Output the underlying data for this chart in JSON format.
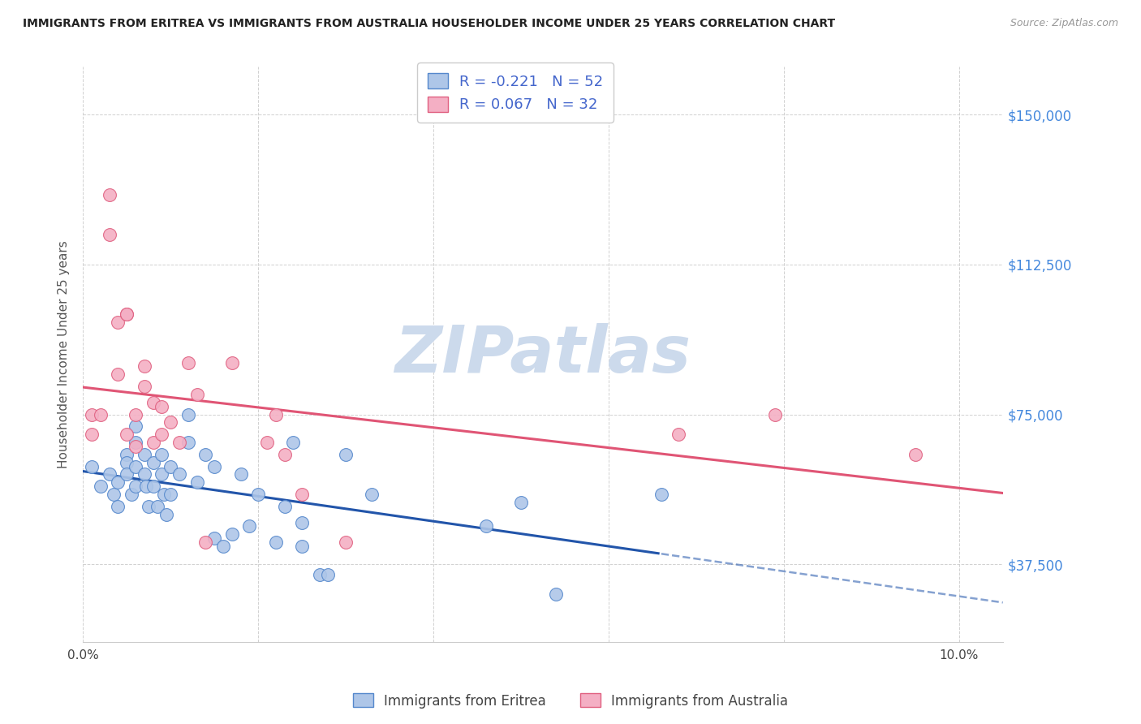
{
  "title": "IMMIGRANTS FROM ERITREA VS IMMIGRANTS FROM AUSTRALIA HOUSEHOLDER INCOME UNDER 25 YEARS CORRELATION CHART",
  "source": "Source: ZipAtlas.com",
  "ylabel": "Householder Income Under 25 years",
  "xlim": [
    0.0,
    0.105
  ],
  "ylim": [
    18000,
    162000
  ],
  "yticks": [
    37500,
    75000,
    112500,
    150000
  ],
  "ytick_labels": [
    "$37,500",
    "$75,000",
    "$112,500",
    "$150,000"
  ],
  "xticks": [
    0.0,
    0.02,
    0.04,
    0.06,
    0.08,
    0.1
  ],
  "xtick_labels": [
    "0.0%",
    "",
    "",
    "",
    "",
    "10.0%"
  ],
  "background_color": "#ffffff",
  "grid_color": "#cccccc",
  "watermark_text": "ZIPatlas",
  "watermark_color": "#ccdaec",
  "legend_R_eritrea": "-0.221",
  "legend_N_eritrea": "52",
  "legend_R_australia": "0.067",
  "legend_N_australia": "32",
  "eritrea_face_color": "#aec6e8",
  "eritrea_edge_color": "#5588cc",
  "australia_face_color": "#f4afc4",
  "australia_edge_color": "#e06080",
  "eritrea_line_color": "#2255aa",
  "australia_line_color": "#e05575",
  "eritrea_points_x": [
    0.001,
    0.002,
    0.003,
    0.0035,
    0.004,
    0.004,
    0.005,
    0.005,
    0.005,
    0.0055,
    0.006,
    0.006,
    0.006,
    0.006,
    0.007,
    0.007,
    0.0072,
    0.0075,
    0.008,
    0.008,
    0.0085,
    0.009,
    0.009,
    0.0092,
    0.0095,
    0.01,
    0.01,
    0.011,
    0.012,
    0.012,
    0.013,
    0.014,
    0.015,
    0.015,
    0.016,
    0.017,
    0.018,
    0.019,
    0.02,
    0.022,
    0.023,
    0.024,
    0.025,
    0.025,
    0.027,
    0.028,
    0.03,
    0.033,
    0.046,
    0.05,
    0.054,
    0.066
  ],
  "eritrea_points_y": [
    62000,
    57000,
    60000,
    55000,
    58000,
    52000,
    65000,
    63000,
    60000,
    55000,
    72000,
    68000,
    62000,
    57000,
    65000,
    60000,
    57000,
    52000,
    63000,
    57000,
    52000,
    65000,
    60000,
    55000,
    50000,
    62000,
    55000,
    60000,
    75000,
    68000,
    58000,
    65000,
    62000,
    44000,
    42000,
    45000,
    60000,
    47000,
    55000,
    43000,
    52000,
    68000,
    48000,
    42000,
    35000,
    35000,
    65000,
    55000,
    47000,
    53000,
    30000,
    55000
  ],
  "australia_points_x": [
    0.001,
    0.001,
    0.002,
    0.003,
    0.003,
    0.004,
    0.004,
    0.005,
    0.005,
    0.005,
    0.006,
    0.006,
    0.007,
    0.007,
    0.008,
    0.008,
    0.009,
    0.009,
    0.01,
    0.011,
    0.012,
    0.013,
    0.014,
    0.017,
    0.021,
    0.022,
    0.023,
    0.025,
    0.03,
    0.068,
    0.079,
    0.095
  ],
  "australia_points_y": [
    75000,
    70000,
    75000,
    130000,
    120000,
    98000,
    85000,
    100000,
    100000,
    70000,
    75000,
    67000,
    87000,
    82000,
    78000,
    68000,
    77000,
    70000,
    73000,
    68000,
    88000,
    80000,
    43000,
    88000,
    68000,
    75000,
    65000,
    55000,
    43000,
    70000,
    75000,
    65000
  ]
}
